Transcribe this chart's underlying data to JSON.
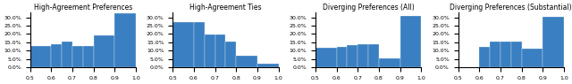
{
  "titles": [
    "High-Agreement Preferences",
    "High-Agreement Ties",
    "Diverging Preferences (All)",
    "Diverging Preferences (Substantial)"
  ],
  "bar_color": "#3a7fc1",
  "title_fontsize": 5.5,
  "tick_fontsize": 4.5,
  "figure_bg": "#ffffff",
  "histograms": [
    {
      "edges": [
        0.5,
        0.6,
        0.65,
        0.7,
        0.75,
        0.8,
        0.9,
        1.0
      ],
      "heights": [
        0.126,
        0.141,
        0.155,
        0.126,
        0.126,
        0.19,
        0.326
      ]
    },
    {
      "edges": [
        0.5,
        0.6,
        0.65,
        0.7,
        0.75,
        0.8,
        0.9,
        1.0
      ],
      "heights": [
        0.27,
        0.27,
        0.195,
        0.195,
        0.155,
        0.07,
        0.02
      ]
    },
    {
      "edges": [
        0.5,
        0.6,
        0.65,
        0.7,
        0.75,
        0.8,
        0.9,
        1.0
      ],
      "heights": [
        0.115,
        0.125,
        0.135,
        0.14,
        0.14,
        0.055,
        0.306
      ]
    },
    {
      "edges": [
        0.5,
        0.6,
        0.65,
        0.7,
        0.75,
        0.8,
        0.9,
        1.0
      ],
      "heights": [
        0.0,
        0.125,
        0.155,
        0.155,
        0.155,
        0.11,
        0.305
      ]
    }
  ],
  "yticks": [
    0.0,
    0.05,
    0.1,
    0.15,
    0.2,
    0.25,
    0.3
  ],
  "xticks": [
    0.5,
    0.6,
    0.7,
    0.8,
    0.9,
    1.0
  ],
  "ylim": [
    0.0,
    0.33
  ]
}
